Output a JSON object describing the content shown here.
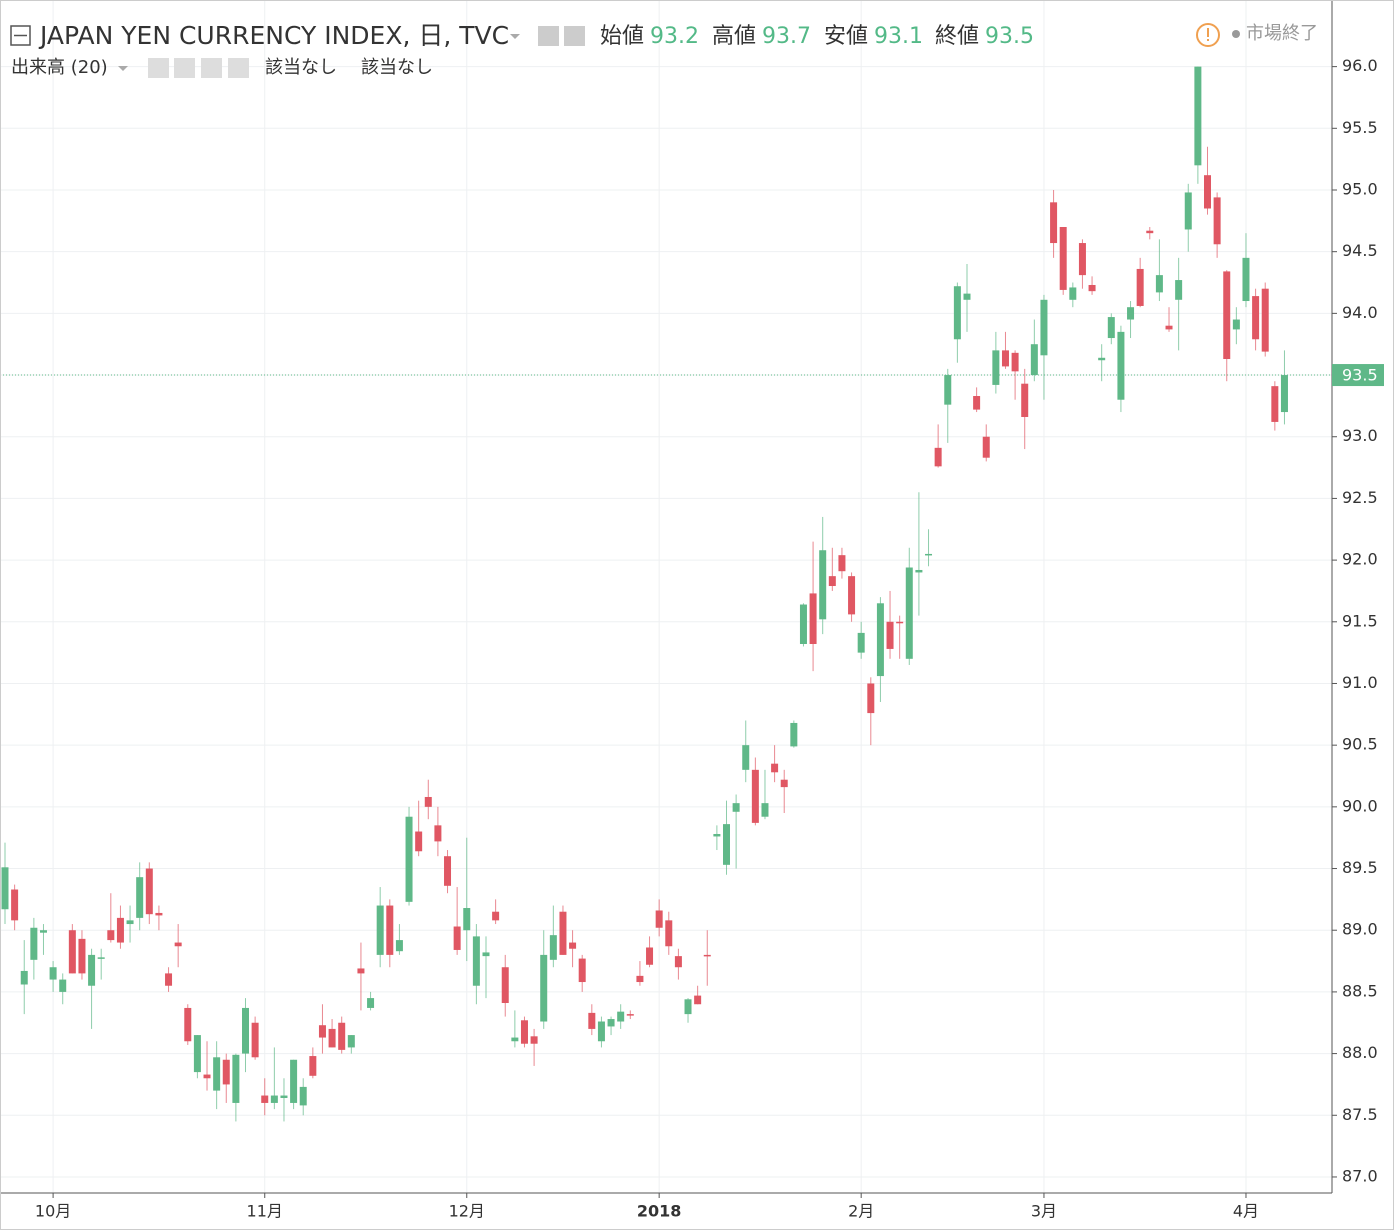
{
  "chart_data": {
    "type": "candlestick",
    "title": "JAPAN YEN CURRENCY INDEX, 日, TVC",
    "header": {
      "open_label": "始値",
      "open": 93.2,
      "high_label": "高値",
      "high": 93.7,
      "low_label": "安値",
      "low": 93.1,
      "close_label": "終値",
      "close": 93.5,
      "status": "市場終了"
    },
    "volume": {
      "label": "出来高 (20)",
      "value1": "該当なし",
      "value2": "該当なし"
    },
    "up_color": "#5fb888",
    "down_color": "#e05763",
    "grid": true,
    "last_price": 93.5,
    "categories": [
      null,
      null,
      null,
      null,
      null,
      "10月",
      null,
      null,
      null,
      null,
      null,
      null,
      null,
      null,
      null,
      null,
      null,
      null,
      null,
      null,
      null,
      null,
      null,
      null,
      null,
      null,
      null,
      "11月",
      null,
      null,
      null,
      null,
      null,
      null,
      null,
      null,
      null,
      null,
      null,
      null,
      null,
      null,
      null,
      null,
      null,
      null,
      null,
      null,
      "12月",
      null,
      null,
      null,
      null,
      null,
      null,
      null,
      null,
      null,
      null,
      null,
      null,
      null,
      null,
      null,
      null,
      null,
      null,
      null,
      "2018",
      null,
      null,
      null,
      null,
      null,
      null,
      null,
      null,
      null,
      null,
      null,
      null,
      null,
      null,
      null,
      null,
      null,
      null,
      null,
      null,
      "2月",
      null,
      null,
      null,
      null,
      null,
      null,
      null,
      null,
      null,
      null,
      null,
      null,
      null,
      null,
      null,
      null,
      null,
      null,
      "3月",
      null,
      null,
      null,
      null,
      null,
      null,
      null,
      null,
      null,
      null,
      null,
      null,
      null,
      null,
      null,
      null,
      null,
      null,
      null,
      null,
      "4月",
      null,
      null,
      null,
      null
    ],
    "open": [
      89.17,
      89.33,
      88.56,
      88.76,
      88.98,
      88.6,
      88.5,
      89.0,
      88.93,
      88.55,
      88.77,
      89.0,
      89.1,
      89.05,
      89.1,
      89.5,
      89.14,
      88.65,
      88.9,
      88.37,
      87.85,
      87.83,
      87.7,
      87.95,
      87.6,
      88.0,
      88.25,
      87.66,
      87.6,
      87.64,
      87.6,
      87.58,
      87.98,
      88.23,
      88.2,
      88.25,
      88.05,
      88.69,
      88.37,
      88.8,
      89.2,
      88.83,
      89.23,
      89.8,
      90.08,
      89.85,
      89.6,
      89.03,
      89.0,
      88.55,
      88.79,
      89.15,
      88.7,
      88.1,
      88.27,
      88.14,
      88.26,
      88.76,
      89.15,
      88.9,
      88.77,
      88.33,
      88.1,
      88.22,
      88.26,
      88.32,
      88.63,
      88.86,
      89.16,
      89.08,
      88.79,
      88.32,
      88.47,
      88.8,
      89.76,
      89.53,
      89.96,
      90.3,
      90.3,
      89.92,
      90.35,
      90.22,
      90.49,
      91.32,
      91.73,
      91.52,
      91.87,
      92.04,
      91.87,
      91.25,
      91.0,
      91.06,
      91.5,
      91.5,
      91.2,
      91.9,
      92.04,
      92.91,
      93.26,
      93.79,
      94.11,
      93.33,
      93.0,
      93.42,
      93.7,
      93.68,
      93.43,
      93.5,
      93.66,
      94.9,
      94.7,
      94.11,
      94.57,
      94.23,
      93.62,
      93.8,
      93.3,
      93.95,
      94.36,
      94.67,
      94.17,
      93.9,
      94.11,
      94.68,
      95.2,
      95.12,
      94.94,
      94.34,
      93.87,
      94.1,
      94.14,
      94.2,
      93.41,
      93.2
    ],
    "high": [
      89.71,
      89.37,
      88.92,
      89.1,
      89.05,
      88.75,
      88.65,
      89.05,
      89.0,
      88.85,
      88.85,
      89.3,
      89.2,
      89.2,
      89.55,
      89.55,
      89.2,
      88.7,
      89.05,
      88.4,
      88.15,
      88.1,
      88.1,
      88.0,
      88.0,
      88.45,
      88.3,
      87.8,
      88.05,
      87.8,
      87.95,
      87.8,
      88.05,
      88.4,
      88.28,
      88.3,
      88.15,
      88.9,
      88.5,
      89.35,
      89.25,
      89.05,
      90.0,
      90.05,
      90.22,
      90.0,
      89.65,
      89.35,
      89.75,
      89.05,
      88.95,
      89.25,
      88.8,
      88.35,
      88.3,
      88.2,
      89.0,
      89.2,
      89.2,
      89.0,
      88.8,
      88.4,
      88.3,
      88.3,
      88.4,
      88.35,
      88.75,
      88.95,
      89.25,
      89.15,
      88.85,
      88.45,
      88.55,
      89.0,
      89.85,
      90.05,
      90.1,
      90.7,
      90.4,
      90.3,
      90.5,
      90.3,
      90.7,
      91.65,
      92.15,
      92.35,
      92.1,
      92.1,
      91.9,
      91.5,
      91.05,
      91.7,
      91.75,
      91.55,
      92.1,
      92.55,
      92.25,
      93.1,
      93.55,
      94.25,
      94.4,
      93.4,
      93.1,
      93.85,
      93.85,
      93.7,
      93.55,
      93.95,
      94.15,
      95.0,
      94.7,
      94.25,
      94.6,
      94.3,
      93.75,
      94.0,
      93.9,
      94.1,
      94.45,
      94.7,
      94.6,
      94.05,
      94.45,
      95.05,
      96.0,
      95.35,
      94.98,
      94.35,
      94.05,
      94.65,
      94.2,
      94.25,
      93.45,
      93.7
    ],
    "low": [
      89.05,
      89.0,
      88.32,
      88.6,
      88.8,
      88.5,
      88.4,
      88.65,
      88.6,
      88.2,
      88.6,
      88.9,
      88.85,
      88.9,
      89.0,
      89.05,
      89.0,
      88.5,
      88.7,
      88.07,
      87.8,
      87.7,
      87.55,
      87.6,
      87.45,
      87.85,
      87.95,
      87.5,
      87.55,
      87.45,
      87.55,
      87.5,
      87.8,
      88.0,
      88.05,
      88.0,
      88.0,
      88.35,
      88.35,
      88.7,
      88.7,
      88.8,
      89.2,
      89.6,
      89.9,
      89.6,
      89.3,
      88.8,
      88.75,
      88.4,
      88.45,
      89.05,
      88.3,
      88.05,
      88.05,
      87.9,
      88.2,
      88.7,
      88.8,
      88.7,
      88.5,
      88.15,
      88.05,
      88.15,
      88.2,
      88.28,
      88.55,
      88.7,
      88.95,
      88.8,
      88.6,
      88.25,
      88.4,
      88.55,
      89.65,
      89.45,
      89.5,
      90.2,
      89.85,
      89.9,
      90.2,
      89.95,
      90.48,
      91.3,
      91.1,
      91.4,
      91.75,
      91.85,
      91.5,
      91.2,
      90.5,
      90.85,
      91.2,
      91.2,
      91.15,
      91.55,
      91.95,
      92.75,
      92.95,
      93.6,
      93.85,
      93.2,
      92.8,
      93.35,
      93.55,
      93.3,
      92.9,
      93.45,
      93.3,
      94.45,
      94.15,
      94.05,
      94.2,
      94.15,
      93.45,
      93.75,
      93.2,
      93.8,
      94.05,
      94.6,
      94.1,
      93.85,
      93.7,
      94.5,
      95.05,
      94.8,
      94.45,
      93.45,
      93.75,
      94.05,
      93.7,
      93.65,
      93.05,
      93.1
    ],
    "close": [
      89.51,
      89.08,
      88.67,
      89.02,
      89.0,
      88.7,
      88.6,
      88.65,
      88.65,
      88.8,
      88.78,
      88.92,
      88.9,
      89.08,
      89.43,
      89.13,
      89.12,
      88.55,
      88.87,
      88.1,
      88.15,
      87.8,
      87.97,
      87.75,
      87.99,
      88.37,
      87.97,
      87.6,
      87.66,
      87.66,
      87.95,
      87.73,
      87.82,
      88.13,
      88.05,
      88.03,
      88.15,
      88.65,
      88.45,
      89.2,
      88.8,
      88.92,
      89.92,
      89.64,
      90.0,
      89.72,
      89.36,
      88.84,
      89.18,
      88.95,
      88.82,
      89.08,
      88.41,
      88.13,
      88.08,
      88.08,
      88.8,
      88.96,
      88.8,
      88.85,
      88.58,
      88.2,
      88.26,
      88.28,
      88.34,
      88.31,
      88.58,
      88.72,
      89.02,
      88.87,
      88.7,
      88.44,
      88.4,
      88.79,
      89.78,
      89.86,
      90.03,
      90.5,
      89.87,
      90.03,
      90.28,
      90.16,
      90.68,
      91.64,
      91.32,
      92.08,
      91.79,
      91.91,
      91.56,
      91.41,
      90.76,
      91.65,
      91.28,
      91.49,
      91.94,
      91.92,
      92.05,
      92.76,
      93.5,
      94.22,
      94.16,
      93.22,
      92.83,
      93.7,
      93.57,
      93.53,
      93.16,
      93.75,
      94.11,
      94.57,
      94.19,
      94.21,
      94.31,
      94.18,
      93.64,
      93.97,
      93.85,
      94.05,
      94.06,
      94.65,
      94.31,
      93.87,
      94.27,
      94.98,
      96.0,
      94.85,
      94.56,
      93.63,
      93.95,
      94.45,
      93.79,
      93.69,
      93.12,
      93.5
    ],
    "ylim": [
      86.87,
      96.54
    ],
    "yticks": [
      {
        "value": 87,
        "label": "87.0"
      },
      87.5,
      {
        "value": 88,
        "label": "88.0"
      },
      88.5,
      {
        "value": 89,
        "label": "89.0"
      },
      89.5,
      {
        "value": 90,
        "label": "90.0"
      },
      90.5,
      {
        "value": 91,
        "label": "91.0"
      },
      91.5,
      {
        "value": 92,
        "label": "92.0"
      },
      92.5,
      {
        "value": 93,
        "label": "93.0"
      },
      93.5,
      {
        "value": 94,
        "label": "94.0"
      },
      94.5,
      {
        "value": 95,
        "label": "95.0"
      },
      95.5,
      {
        "value": 96,
        "label": "96.0"
      }
    ]
  }
}
